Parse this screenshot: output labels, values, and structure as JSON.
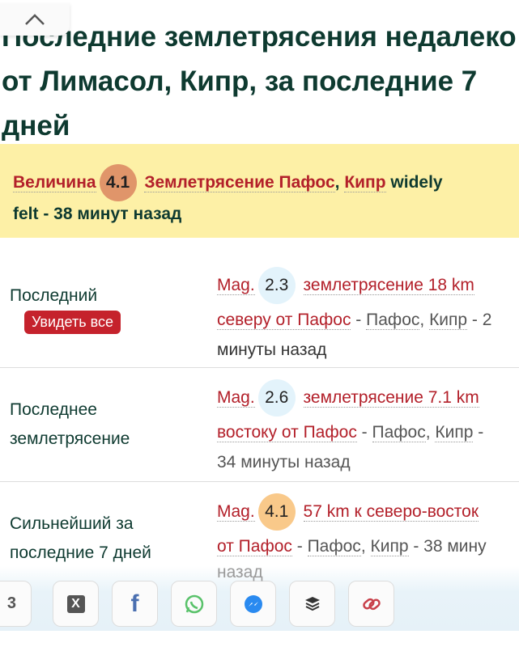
{
  "title": "Последние землетрясения недалеко\nот Лимасол, Кипр, за последние 7\nдней",
  "banner": {
    "prefix": "Величина",
    "mag": "4.1",
    "quake": "Землетрясение Пафос",
    "comma": ",",
    "country": "Кипр",
    "tail": " widely",
    "line2": "felt - 38 минут назад",
    "mag_color": "#e0956a"
  },
  "rows": [
    {
      "label": "Последний",
      "button": "Увидеть все",
      "mag_prefix": "Mag.",
      "mag": "2.3",
      "title": "землетрясение 18 km",
      "title2": "северу от Пафос",
      "sep1": " - ",
      "place": "Пафос",
      "comma": ",",
      "country": "Кипр",
      "sep2": " - 2",
      "time": "минуты назад",
      "mag_color": "#e3f3fb"
    },
    {
      "label": "Последнее землетрясение",
      "mag_prefix": "Mag.",
      "mag": "2.6",
      "title": "землетрясение 7.1 km",
      "title2": "востоку от Пафос",
      "sep1": " - ",
      "place": "Пафос",
      "comma": ",",
      "country": "Кипр",
      "sep2": " -",
      "time": "34 минуты назад",
      "mag_color": "#e3f3fb"
    },
    {
      "label": "Сильнейший за последние 7 дней",
      "mag_prefix": "Mag.",
      "mag": "4.1",
      "title": "57 km к северо-восток",
      "title2": "от Пафос",
      "sep1": " - ",
      "place": "Пафос",
      "comma": ",",
      "country": "Кипр",
      "sep2": " - 38 мину",
      "time": "назад",
      "mag_color": "#f9c98a"
    }
  ],
  "share": {
    "count": "3",
    "icons": [
      "x-icon",
      "facebook-icon",
      "whatsapp-icon",
      "messenger-icon",
      "buffer-icon",
      "link-icon"
    ]
  }
}
